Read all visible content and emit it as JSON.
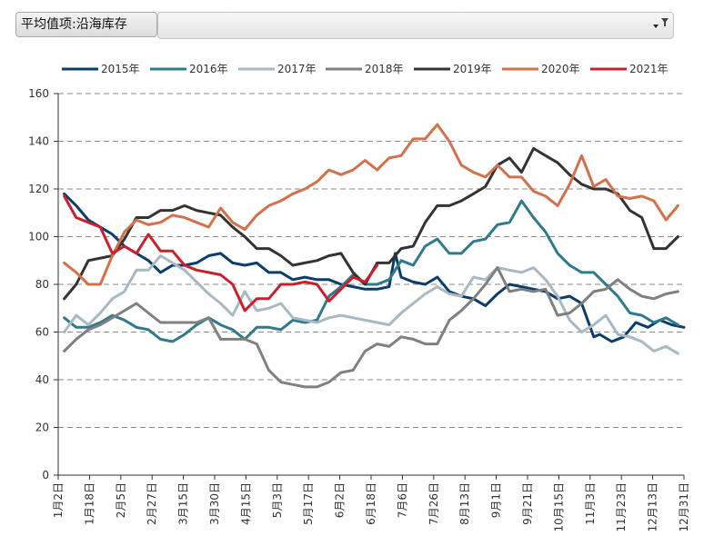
{
  "pivot": {
    "field_label": "平均值项:沿海库存"
  },
  "colors": {
    "grid": "#8a8a8a"
  },
  "chart_data": {
    "type": "line",
    "title": "",
    "xlabel": "",
    "ylabel": "",
    "ylim": [
      0,
      160
    ],
    "yticks": [
      0,
      20,
      40,
      60,
      80,
      100,
      120,
      140,
      160
    ],
    "xlim": [
      0,
      52
    ],
    "x_tick_labels": [
      "1月2日",
      "1月18日",
      "2月5日",
      "2月27日",
      "3月15日",
      "3月30日",
      "4月15日",
      "5月3日",
      "5月17日",
      "6月2日",
      "6月18日",
      "7月6日",
      "7月26日",
      "8月13日",
      "9月1日",
      "9月21日",
      "10月15日",
      "11月3日",
      "11月23日",
      "12月13日",
      "12月31日"
    ],
    "x_tick_positions": [
      0,
      2.6,
      5.2,
      7.8,
      10.4,
      13,
      15.6,
      18.2,
      20.8,
      23.4,
      26,
      28.6,
      31.2,
      33.8,
      36.4,
      39,
      41.6,
      44.2,
      46.8,
      49.4,
      52
    ],
    "legend_position": "top",
    "series": [
      {
        "name": "2015年",
        "color": "#0b3d6b",
        "x": [
          0.5,
          1.5,
          2.5,
          3.5,
          4.5,
          5.5,
          6.5,
          7.5,
          8.5,
          9.5,
          10.5,
          11.5,
          12.5,
          13.5,
          14.5,
          15.5,
          16.5,
          17.5,
          18.5,
          19.5,
          20.5,
          21.5,
          22.5,
          23.5,
          24.5,
          25.5,
          26.5,
          27.5,
          28,
          28.5,
          29.5,
          30.5,
          31.5,
          32.5,
          33.5,
          34.5,
          35.5,
          36.5,
          37.5,
          38.5,
          39.5,
          40.5,
          41.5,
          42.5,
          43.5,
          44.5,
          45,
          46,
          47,
          48,
          49,
          50,
          51,
          52
        ],
        "values": [
          118,
          113,
          107,
          104,
          101,
          96,
          93,
          90,
          85,
          88,
          88,
          89,
          92,
          93,
          89,
          88,
          89,
          85,
          85,
          82,
          83,
          82,
          82,
          80,
          79,
          78,
          78,
          79,
          93,
          83,
          81,
          80,
          83,
          77,
          75,
          74,
          71,
          76,
          80,
          79,
          78,
          77,
          74,
          75,
          72,
          58,
          59,
          56,
          58,
          64,
          62,
          65,
          63,
          62
        ]
      },
      {
        "name": "2016年",
        "color": "#2f7a8c",
        "x": [
          0.5,
          1.5,
          2.5,
          3.5,
          4.5,
          5.5,
          6.5,
          7.5,
          8.5,
          9.5,
          10.5,
          11.5,
          12.5,
          13.5,
          14.5,
          15.5,
          16.5,
          17.5,
          18.5,
          19.5,
          20.5,
          21.5,
          22.5,
          23.5,
          24.5,
          25.5,
          26.5,
          27.5,
          28.5,
          29.5,
          30.5,
          31.5,
          32.5,
          33.5,
          34.5,
          35.5,
          36.5,
          37.5,
          38.5,
          39.5,
          40.5,
          41.5,
          42.5,
          43.5,
          44.5,
          45.5,
          46.5,
          47.5,
          48.5,
          49.5,
          50.5,
          51.5
        ],
        "values": [
          66,
          62,
          62,
          64,
          67,
          65,
          62,
          61,
          57,
          56,
          59,
          63,
          66,
          63,
          61,
          57,
          62,
          62,
          61,
          65,
          64,
          65,
          75,
          79,
          84,
          80,
          80,
          82,
          90,
          88,
          96,
          99,
          93,
          93,
          98,
          99,
          105,
          106,
          115,
          108,
          102,
          93,
          88,
          85,
          85,
          80,
          75,
          68,
          67,
          64,
          66,
          63
        ]
      },
      {
        "name": "2017年",
        "color": "#a7b9c2",
        "x": [
          0.5,
          1.5,
          2.5,
          3.5,
          4.5,
          5.5,
          6.5,
          7.5,
          8.5,
          9.5,
          10.5,
          11.5,
          12.5,
          13.5,
          14.5,
          15.5,
          16.5,
          17.5,
          18.5,
          19.5,
          20.5,
          21.5,
          22.5,
          23.5,
          24.5,
          25.5,
          26.5,
          27.5,
          28.5,
          29.5,
          30.5,
          31.5,
          32.5,
          33.5,
          34.5,
          35.5,
          36.5,
          37.5,
          38.5,
          39.5,
          40.5,
          41.5,
          42.5,
          43.5,
          44.5,
          45.5,
          46.5,
          47.5,
          48.5,
          49.5,
          50.5,
          51.5
        ],
        "values": [
          60,
          67,
          63,
          68,
          74,
          77,
          86,
          86,
          92,
          89,
          86,
          81,
          76,
          72,
          67,
          77,
          69,
          70,
          72,
          66,
          65,
          64,
          66,
          67,
          66,
          65,
          64,
          63,
          68,
          72,
          76,
          79,
          76,
          75,
          83,
          82,
          87,
          86,
          85,
          87,
          82,
          75,
          65,
          60,
          63,
          67,
          59,
          58,
          56,
          52,
          54,
          51
        ]
      },
      {
        "name": "2018年",
        "color": "#808080",
        "x": [
          0.5,
          1.5,
          2.5,
          3.5,
          4.5,
          5.5,
          6.5,
          7.5,
          8.5,
          9.5,
          10.5,
          11.5,
          12.5,
          13.5,
          14.5,
          15.5,
          16.5,
          17.5,
          18.5,
          19.5,
          20.5,
          21.5,
          22.5,
          23.5,
          24.5,
          25.5,
          26.5,
          27.5,
          28.5,
          29.5,
          30.5,
          31.5,
          32.5,
          33.5,
          34.5,
          35.5,
          36.5,
          37.5,
          38.5,
          39.5,
          40.5,
          41.5,
          42.5,
          43.5,
          44.5,
          45.5,
          46.5,
          47.5,
          48.5,
          49.5,
          50.5,
          51.5
        ],
        "values": [
          52,
          57,
          61,
          63,
          66,
          69,
          72,
          68,
          64,
          64,
          64,
          64,
          66,
          57,
          57,
          57,
          55,
          44,
          39,
          38,
          37,
          37,
          39,
          43,
          44,
          52,
          55,
          54,
          58,
          57,
          55,
          55,
          65,
          69,
          74,
          80,
          87,
          77,
          78,
          77,
          78,
          67,
          68,
          72,
          77,
          78,
          82,
          78,
          75,
          74,
          76,
          77
        ]
      },
      {
        "name": "2019年",
        "color": "#333333",
        "x": [
          0.5,
          1.5,
          2.5,
          3.5,
          4.5,
          5.5,
          6.5,
          7.5,
          8.5,
          9.5,
          10.5,
          11.5,
          12.5,
          13.5,
          14.5,
          15.5,
          16.5,
          17.5,
          18.5,
          19.5,
          20.5,
          21.5,
          22.5,
          23.5,
          24.5,
          25.5,
          26.5,
          27.5,
          28.5,
          29.5,
          30.5,
          31.5,
          32.5,
          33.5,
          34.5,
          35.5,
          36.5,
          37.5,
          38.5,
          39.5,
          40.5,
          41.5,
          42.5,
          43.5,
          44.5,
          45.5,
          46.5,
          47.5,
          48.5,
          49.5,
          50.5,
          51.5
        ],
        "values": [
          74,
          80,
          90,
          91,
          92,
          99,
          108,
          108,
          111,
          111,
          113,
          111,
          110,
          109,
          104,
          100,
          95,
          95,
          92,
          88,
          89,
          90,
          92,
          93,
          85,
          80,
          89,
          89,
          95,
          96,
          106,
          113,
          113,
          115,
          118,
          121,
          130,
          133,
          127,
          137,
          134,
          131,
          126,
          122,
          120,
          120,
          118,
          111,
          108,
          95,
          95,
          100
        ]
      },
      {
        "name": "2020年",
        "color": "#d4704a",
        "x": [
          0.5,
          1.5,
          2.5,
          3.5,
          4.5,
          5.5,
          6.5,
          7.5,
          8.5,
          9.5,
          10.5,
          11.5,
          12.5,
          13.5,
          14.5,
          15.5,
          16.5,
          17.5,
          18.5,
          19.5,
          20.5,
          21.5,
          22.5,
          23.5,
          24.5,
          25.5,
          26.5,
          27.5,
          28.5,
          29.5,
          30.5,
          31.5,
          32.5,
          33.5,
          34.5,
          35.5,
          36.5,
          37.5,
          38.5,
          39.5,
          40.5,
          41.5,
          42.5,
          43.5,
          44.5,
          45.5,
          46.5,
          47.5,
          48.5,
          49.5,
          50.5,
          51.5
        ],
        "values": [
          89,
          85,
          80,
          80,
          92,
          102,
          107,
          105,
          106,
          109,
          108,
          106,
          104,
          112,
          106,
          103,
          109,
          113,
          115,
          118,
          120,
          123,
          128,
          126,
          128,
          132,
          128,
          133,
          134,
          141,
          141,
          147,
          140,
          130,
          127,
          125,
          130,
          125,
          125,
          119,
          117,
          113,
          122,
          134,
          121,
          124,
          117,
          116,
          117,
          115,
          107,
          113
        ]
      },
      {
        "name": "2021年",
        "color": "#cc1f2e",
        "x": [
          0.5,
          1.5,
          2.5,
          3.5,
          4.5,
          5.5,
          6.5,
          7.5,
          8.5,
          9.5,
          10.5,
          11.5,
          12.5,
          13.5,
          14.5,
          15.5,
          16.5,
          17.5,
          18.5,
          19.5,
          20.5,
          21.5,
          22.5,
          23.5,
          24.5,
          25.5,
          26.5
        ],
        "values": [
          117,
          108,
          106,
          104,
          93,
          96,
          93,
          101,
          94,
          94,
          88,
          86,
          85,
          84,
          80,
          69,
          74,
          74,
          80,
          80,
          81,
          80,
          73,
          78,
          83,
          81,
          88
        ]
      }
    ]
  }
}
